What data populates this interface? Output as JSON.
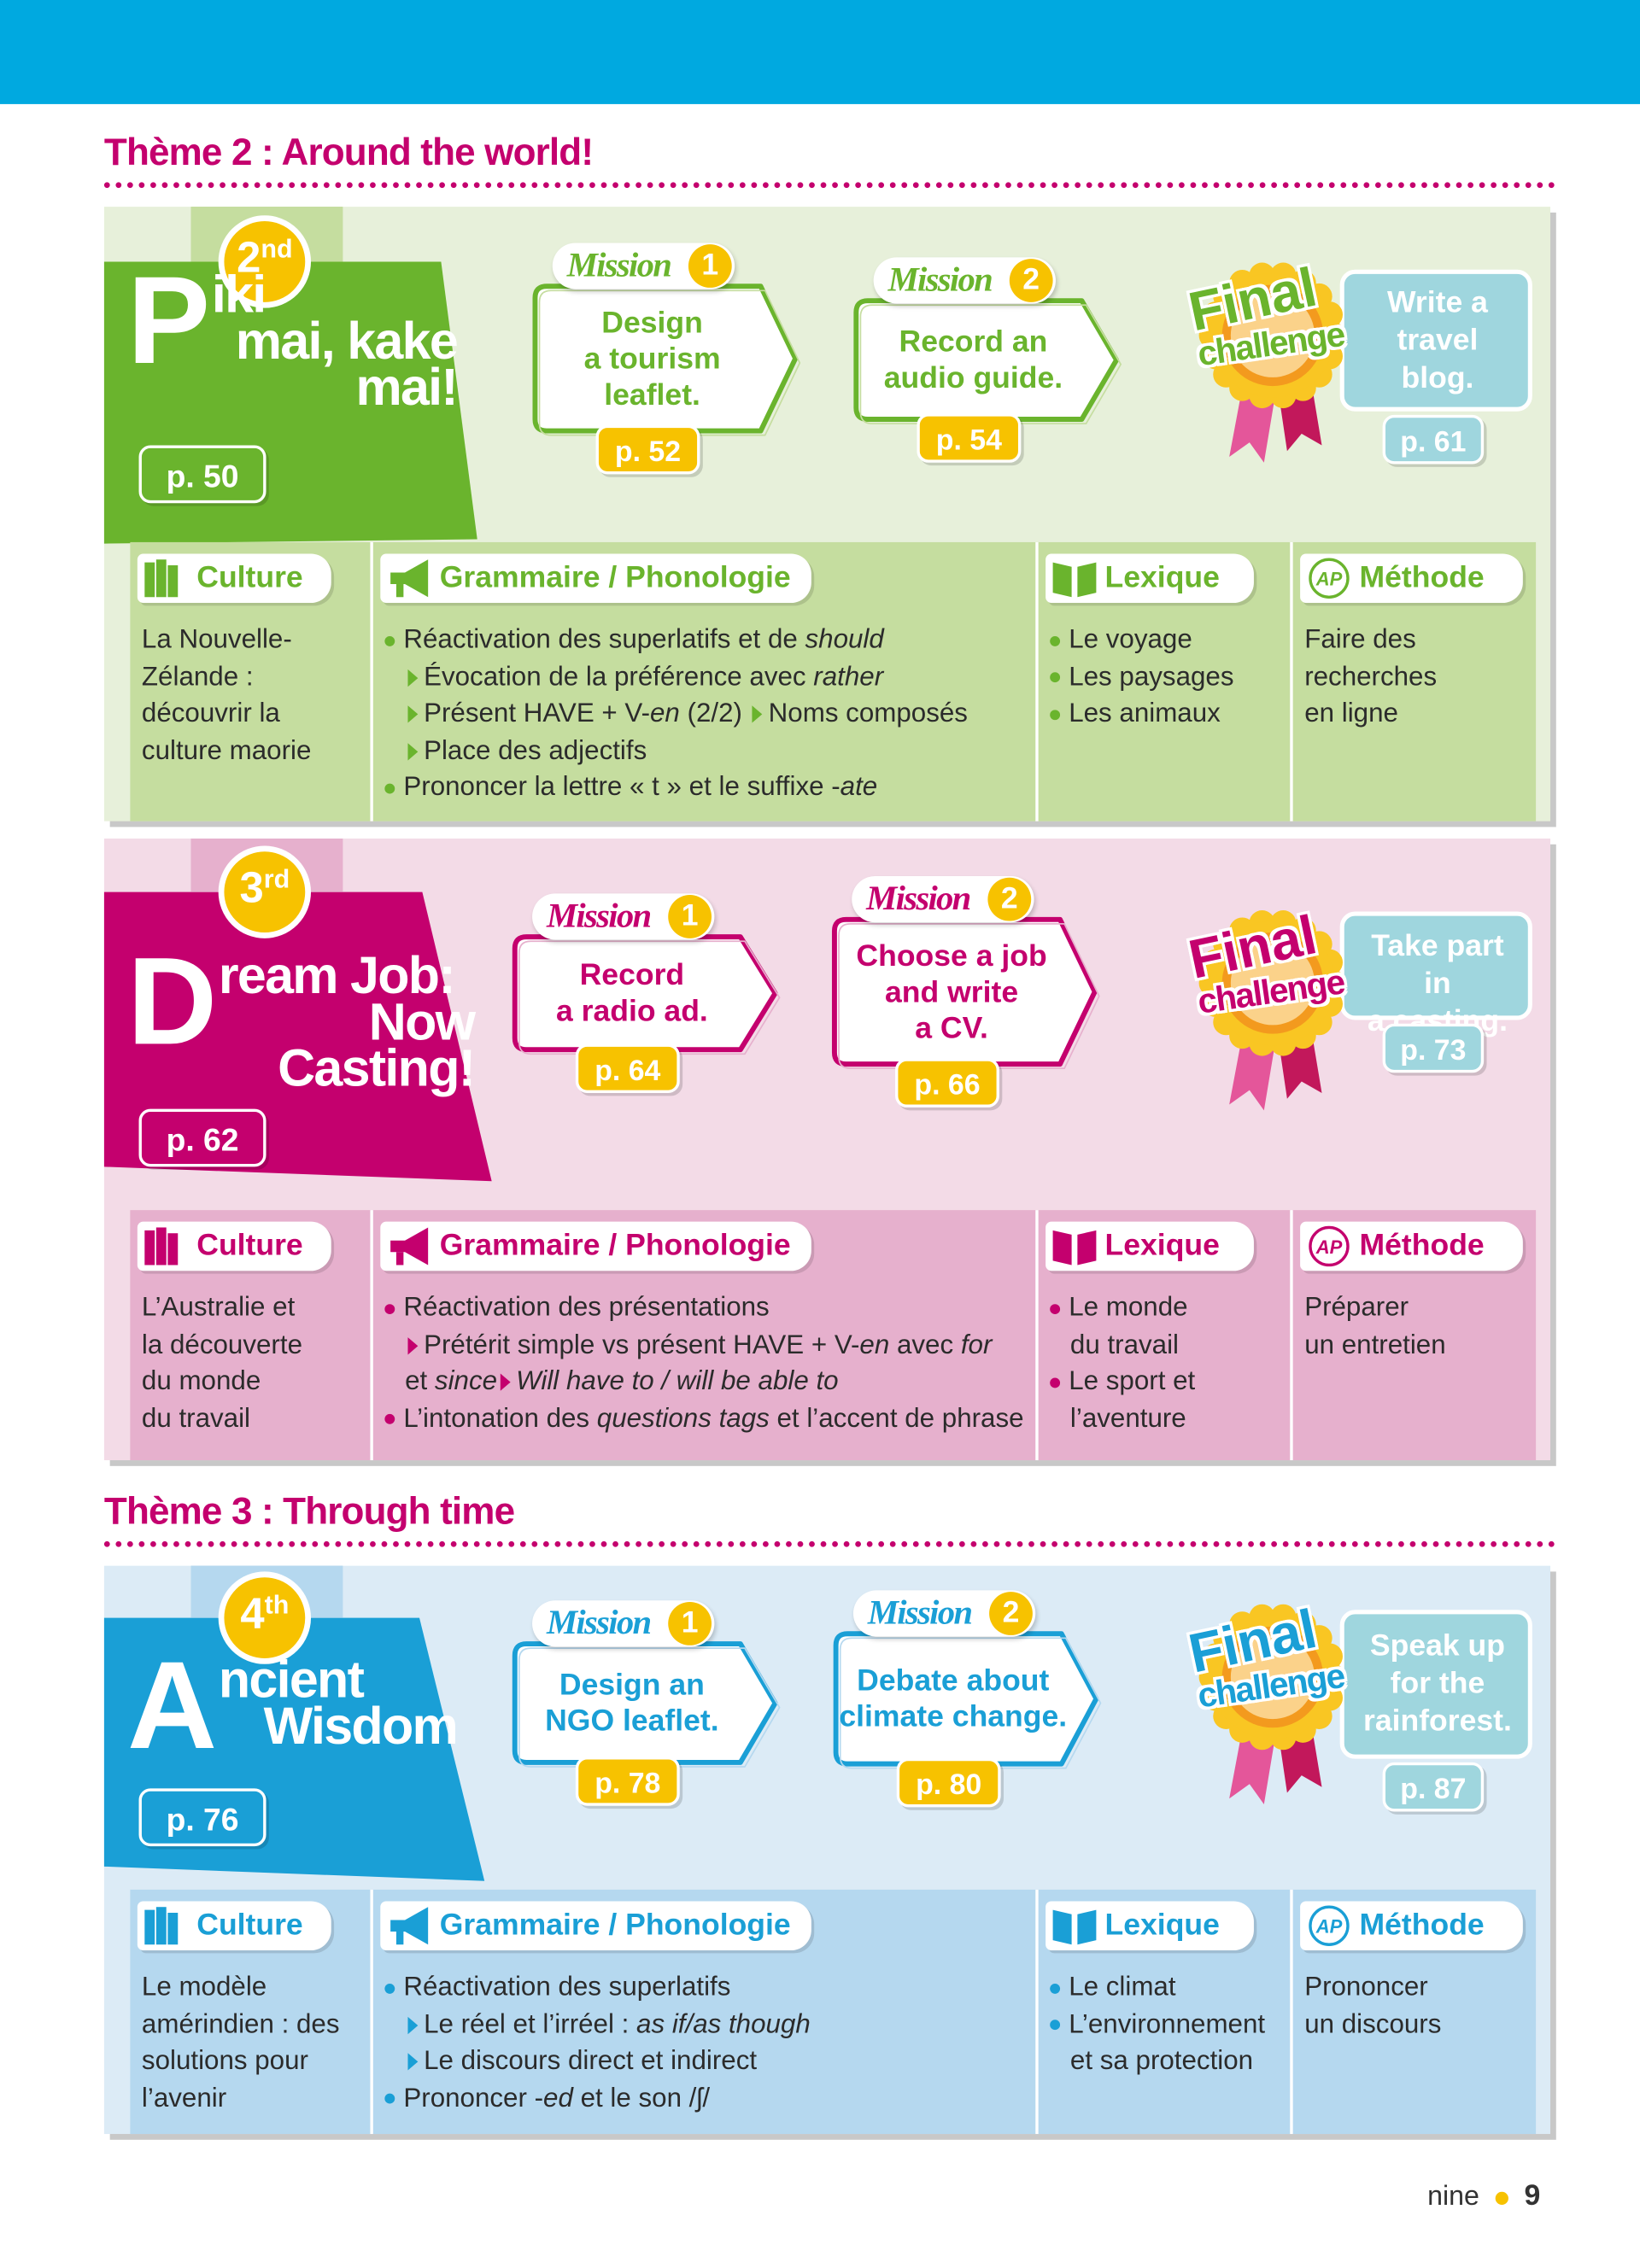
{
  "labels": {
    "mission": "Mission",
    "final": "Final",
    "challenge": "challenge",
    "ap": "AP"
  },
  "sections": [
    "Culture",
    "Grammaire / Phonologie",
    "Lexique",
    "Méthode"
  ],
  "themes": [
    {
      "title": "Thème 2 : Around the world!",
      "units": [
        {
          "ordinal": "2",
          "ordinal_suffix": "nd",
          "title_lines": [
            "Piki",
            "mai, kake",
            "mai!"
          ],
          "page": "p. 50",
          "color": "#6ab42d",
          "bg": "#e7f0da",
          "table_bg": "#c5dd9f",
          "missions": [
            {
              "number": "1",
              "lines": [
                "Design",
                "a tourism",
                "leaflet."
              ],
              "page": "p. 52"
            },
            {
              "number": "2",
              "lines": [
                "Record an",
                "audio guide."
              ],
              "page": "p. 54"
            }
          ],
          "final": {
            "lines": [
              "Write a",
              "travel",
              "blog."
            ],
            "page": "p. 61"
          },
          "culture": [
            "La Nouvelle-",
            "Zélande :",
            "découvrir la",
            "culture maorie"
          ],
          "grammaire": [
            [
              {
                "m": "bullet"
              },
              {
                "t": "Réactivation des superlatifs et de "
              },
              {
                "i": "should"
              }
            ],
            [
              {
                "m": "arrow"
              },
              {
                "t": "Évocation de la préférence avec "
              },
              {
                "i": "rather"
              }
            ],
            [
              {
                "m": "arrow"
              },
              {
                "t": "Présent HAVE + V-"
              },
              {
                "i": "en"
              },
              {
                "t": " (2/2) "
              },
              {
                "m": "arrow"
              },
              {
                "t": "Noms composés"
              }
            ],
            [
              {
                "m": "arrow"
              },
              {
                "t": "Place des adjectifs"
              }
            ],
            [
              {
                "m": "bullet"
              },
              {
                "t": "Prononcer la lettre « t » et le suffixe -"
              },
              {
                "i": "ate"
              }
            ]
          ],
          "lexique": [
            [
              {
                "m": "bullet"
              },
              {
                "t": "Le voyage"
              }
            ],
            [
              {
                "m": "bullet"
              },
              {
                "t": "Les paysages"
              }
            ],
            [
              {
                "m": "bullet"
              },
              {
                "t": "Les animaux"
              }
            ]
          ],
          "methode": [
            "Faire des",
            "recherches",
            "en ligne"
          ]
        },
        {
          "ordinal": "3",
          "ordinal_suffix": "rd",
          "title_lines": [
            "Dream Job:",
            "Now Casting!"
          ],
          "page": "p. 62",
          "color": "#c4006e",
          "bg": "#f3dbe7",
          "table_bg": "#e6b0cd",
          "missions": [
            {
              "number": "1",
              "lines": [
                "Record",
                "a radio ad."
              ],
              "page": "p. 64"
            },
            {
              "number": "2",
              "lines": [
                "Choose a job",
                "and write",
                "a CV."
              ],
              "page": "p. 66"
            }
          ],
          "final": {
            "lines": [
              "Take part in",
              "a casting."
            ],
            "page": "p. 73"
          },
          "culture": [
            "L’Australie et",
            "la découverte",
            "du monde",
            "du travail"
          ],
          "grammaire": [
            [
              {
                "m": "bullet"
              },
              {
                "t": "Réactivation des présentations"
              }
            ],
            [
              {
                "m": "arrow"
              },
              {
                "t": "Prétérit simple vs présent HAVE + V-"
              },
              {
                "i": "en"
              },
              {
                "t": " avec "
              },
              {
                "i": "for"
              }
            ],
            [
              {
                "t": "et "
              },
              {
                "i": "since"
              },
              {
                "m": "arrow"
              },
              {
                "i": "Will have to / will be able to"
              }
            ],
            [
              {
                "m": "bullet"
              },
              {
                "t": "L’intonation des "
              },
              {
                "i": "questions tags"
              },
              {
                "t": " et l’accent de phrase"
              }
            ]
          ],
          "lexique": [
            [
              {
                "m": "bullet"
              },
              {
                "t": "Le monde"
              }
            ],
            "du travail",
            [
              {
                "m": "bullet"
              },
              {
                "t": "Le sport et"
              }
            ],
            "l’aventure"
          ],
          "methode": [
            "Préparer",
            "un entretien"
          ]
        }
      ]
    },
    {
      "title": "Thème 3 : Through time",
      "units": [
        {
          "ordinal": "4",
          "ordinal_suffix": "th",
          "title_lines": [
            "Ancient",
            "Wisdom"
          ],
          "page": "p. 76",
          "color": "#1a9fd6",
          "bg": "#dcebf6",
          "table_bg": "#b5d8ef",
          "missions": [
            {
              "number": "1",
              "lines": [
                "Design an",
                "NGO leaflet."
              ],
              "page": "p. 78"
            },
            {
              "number": "2",
              "lines": [
                "Debate about",
                "climate change."
              ],
              "page": "p. 80"
            }
          ],
          "final": {
            "lines": [
              "Speak up",
              "for the",
              "rainforest."
            ],
            "page": "p. 87"
          },
          "culture": [
            "Le modèle",
            "amérindien : des",
            "solutions pour",
            "l’avenir"
          ],
          "grammaire": [
            [
              {
                "m": "bullet"
              },
              {
                "t": "Réactivation des superlatifs"
              }
            ],
            [
              {
                "m": "arrow"
              },
              {
                "t": "Le réel et l’irréel : "
              },
              {
                "i": "as if/as though"
              }
            ],
            [
              {
                "m": "arrow"
              },
              {
                "t": "Le discours direct et indirect"
              }
            ],
            [
              {
                "m": "bullet"
              },
              {
                "t": "Prononcer -"
              },
              {
                "i": "ed"
              },
              {
                "t": " et le son /ʃ/"
              }
            ]
          ],
          "lexique": [
            [
              {
                "m": "bullet"
              },
              {
                "t": "Le climat"
              }
            ],
            [
              {
                "m": "bullet"
              },
              {
                "t": "L’environnement"
              }
            ],
            "et sa protection"
          ],
          "methode": [
            "Prononcer",
            "un discours"
          ]
        }
      ]
    }
  ],
  "footer": {
    "word": "nine",
    "page": "9"
  }
}
